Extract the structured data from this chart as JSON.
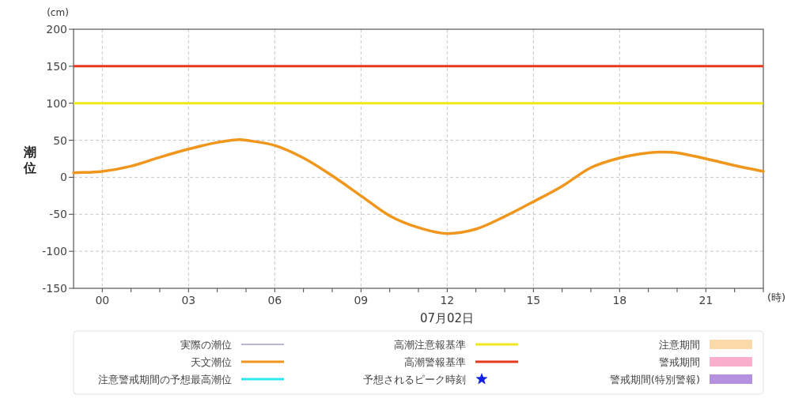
{
  "chart_data": {
    "type": "line",
    "ylabel": "潮位",
    "xlabel": "07月02日",
    "annotations": [
      "(cm)",
      "(時)"
    ],
    "x": [
      -1,
      0,
      1,
      2,
      3,
      4,
      4.8,
      5,
      6,
      7,
      8,
      9,
      10,
      11,
      12,
      13,
      14,
      15,
      16,
      17,
      18,
      19,
      19.5,
      20,
      21,
      22,
      23
    ],
    "series": [
      {
        "name": "実際の潮位",
        "type": "line",
        "color": "#7d6bb0",
        "values": [
          null,
          null,
          null,
          null,
          null,
          null,
          null,
          null,
          null,
          null,
          null,
          null,
          null,
          null,
          null,
          null,
          null,
          null,
          null,
          null,
          null,
          null,
          null,
          null,
          null,
          null,
          null
        ]
      },
      {
        "name": "天文潮位",
        "color": "#f0961c",
        "values": [
          6,
          8,
          15,
          27,
          38,
          47,
          51,
          50,
          43,
          26,
          2,
          -25,
          -52,
          -68,
          -76,
          -70,
          -53,
          -33,
          -12,
          13,
          26,
          33,
          34,
          33,
          25,
          16,
          8
        ]
      },
      {
        "name": "注意警戒期間の予想最高潮位",
        "type": "line",
        "color": "#2ee8ee",
        "values": [
          null,
          null,
          null,
          null,
          null,
          null,
          null,
          null,
          null,
          null,
          null,
          null,
          null,
          null,
          null,
          null,
          null,
          null,
          null,
          null,
          null,
          null,
          null,
          null,
          null,
          null,
          null
        ]
      },
      {
        "name": "予想されるピーク時刻",
        "type": "scatter",
        "marker": "star",
        "color": "#1020e0",
        "values": [
          null,
          null,
          null,
          null,
          null,
          null,
          null,
          null,
          null,
          null,
          null,
          null,
          null,
          null,
          null,
          null,
          null,
          null,
          null,
          null,
          null,
          null,
          null,
          null,
          null,
          null,
          null
        ]
      },
      {
        "name": "注意期間",
        "type": "area",
        "color": "#fcd9a8",
        "values": [
          null,
          null,
          null,
          null,
          null,
          null,
          null,
          null,
          null,
          null,
          null,
          null,
          null,
          null,
          null,
          null,
          null,
          null,
          null,
          null,
          null,
          null,
          null,
          null,
          null,
          null,
          null
        ]
      },
      {
        "name": "警戒期間",
        "type": "area",
        "color": "#f9aecb",
        "values": [
          null,
          null,
          null,
          null,
          null,
          null,
          null,
          null,
          null,
          null,
          null,
          null,
          null,
          null,
          null,
          null,
          null,
          null,
          null,
          null,
          null,
          null,
          null,
          null,
          null,
          null,
          null
        ]
      },
      {
        "name": "警戒期間(特別警報)",
        "type": "area",
        "color": "#b492e0",
        "values": [
          null,
          null,
          null,
          null,
          null,
          null,
          null,
          null,
          null,
          null,
          null,
          null,
          null,
          null,
          null,
          null,
          null,
          null,
          null,
          null,
          null,
          null,
          null,
          null,
          null,
          null,
          null
        ]
      }
    ],
    "ref_lines": [
      {
        "axis": "y",
        "value": 100,
        "label": "高潮注意報基準",
        "color": "#f0e81e"
      },
      {
        "axis": "y",
        "value": 150,
        "label": "高潮警報基準",
        "color": "#e8391d"
      }
    ],
    "xlim": [
      -1,
      23
    ],
    "ylim": [
      -150,
      200
    ],
    "xticks": [
      {
        "value": 0,
        "label": "00"
      },
      {
        "value": 1,
        "label": null
      },
      {
        "value": 2,
        "label": null
      },
      {
        "value": 3,
        "label": "03"
      },
      {
        "value": 4,
        "label": null
      },
      {
        "value": 5,
        "label": null
      },
      {
        "value": 6,
        "label": "06"
      },
      {
        "value": 7,
        "label": null
      },
      {
        "value": 8,
        "label": null
      },
      {
        "value": 9,
        "label": "09"
      },
      {
        "value": 10,
        "label": null
      },
      {
        "value": 11,
        "label": null
      },
      {
        "value": 12,
        "label": "12"
      },
      {
        "value": 13,
        "label": null
      },
      {
        "value": 14,
        "label": null
      },
      {
        "value": 15,
        "label": "15"
      },
      {
        "value": 16,
        "label": null
      },
      {
        "value": 17,
        "label": null
      },
      {
        "value": 18,
        "label": "18"
      },
      {
        "value": 19,
        "label": null
      },
      {
        "value": 20,
        "label": null
      },
      {
        "value": 21,
        "label": "21"
      },
      {
        "value": 22,
        "label": null
      },
      {
        "value": 23,
        "label": null
      }
    ],
    "yticks": [
      -150,
      -100,
      -50,
      0,
      50,
      100,
      150,
      200
    ],
    "grid": true,
    "legend": "bottom",
    "marker": "none"
  }
}
